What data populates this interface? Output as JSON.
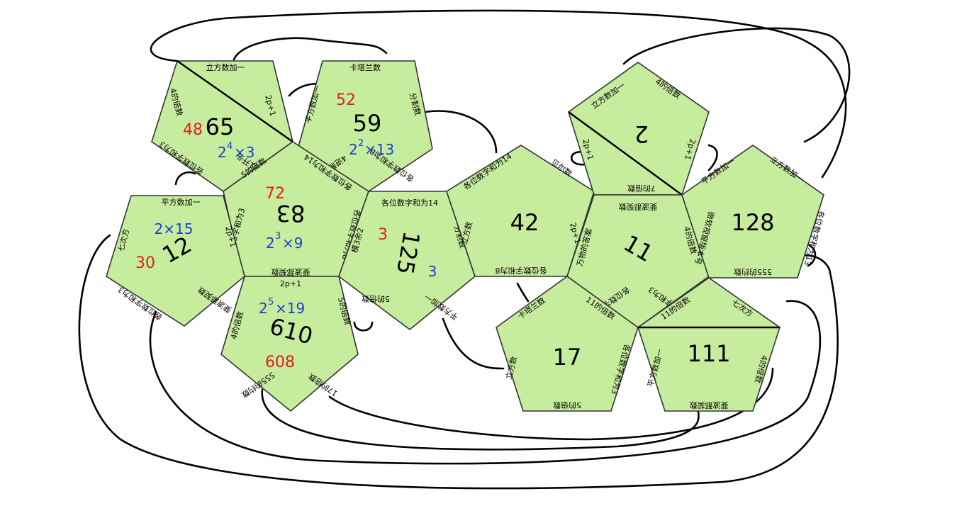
{
  "faces": {
    "f65": {
      "number": "65",
      "edges": [
        "立方数加一",
        "2p+1",
        "4进制1开头",
        "各位数字和为3",
        "4的倍数"
      ],
      "factor": "2",
      "factor_exp": "4",
      "factor_tail": "×3",
      "note": "48"
    },
    "f59": {
      "number": "59",
      "edges": [
        "卡塔兰数",
        "分割数",
        "各位数字和为8",
        "4进制1开头",
        "平方数加一"
      ],
      "factor": "2",
      "factor_exp": "2",
      "factor_tail": "×13",
      "note": "52"
    },
    "f83": {
      "number": "83",
      "edges": [
        "5的倍数",
        "各位数字和为14",
        "各位数字和为8",
        "斐波那契数",
        "各位数字和为3"
      ],
      "factor": "2",
      "factor_exp": "3",
      "factor_tail": "×9",
      "note": "72"
    },
    "f12": {
      "number": "12",
      "edges": [
        "平方数加一",
        "2p+1",
        "斐波那契数",
        "各位数字和为3",
        "七次方"
      ],
      "factor": "2×15",
      "note": "30"
    },
    "f610": {
      "number": "610",
      "edges": [
        "2p+1",
        "5的倍数",
        "17的倍数",
        "555的约数",
        "4的倍数"
      ],
      "factor": "2",
      "factor_exp": "5",
      "factor_tail": "×19",
      "note": "608"
    },
    "f125": {
      "number": "125",
      "edges": [
        "各位数字和为14",
        "分割数",
        "平方数加一",
        "5的倍数",
        "模3余2"
      ],
      "note_red": "3",
      "note_blue": "3"
    },
    "f42": {
      "number": "42",
      "edges": [
        "各位数字和为14",
        "贝尔数",
        "各位数字和为8",
        "立方数"
      ]
    },
    "f2": {
      "number": "2",
      "edges": [
        "立方数加一",
        "4的倍数",
        "2p+1",
        "7的倍数",
        "2p+1"
      ]
    },
    "f11": {
      "number": "11",
      "edges": [
        "斐波那契数",
        "4的倍数",
        "各位数字和为3",
        "各位数字和为8",
        "万物的答案",
        "2p+1"
      ]
    },
    "f128": {
      "number": "128",
      "edges": [
        "平方数加一",
        "立方数加一",
        "各位数字和为13",
        "555的约数",
        "微软视窗版本号"
      ]
    },
    "f17": {
      "number": "17",
      "edges": [
        "卡塔兰数",
        "11的倍数",
        "各位数字和为3",
        "5的倍数",
        "立方数"
      ]
    },
    "f111": {
      "number": "111",
      "edges": [
        "11的倍数",
        "七次方",
        "4的倍数",
        "斐波那契数",
        "平方数加一"
      ]
    }
  }
}
